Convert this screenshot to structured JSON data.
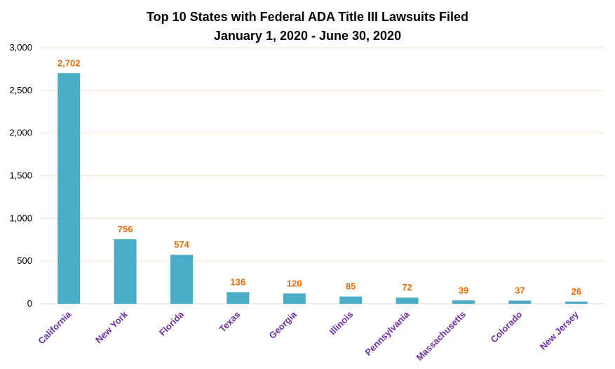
{
  "chart_data": {
    "type": "bar",
    "title": [
      "Top 10 States with Federal ADA Title III Lawsuits Filed",
      "January 1, 2020 - June 30, 2020"
    ],
    "categories": [
      "California",
      "New York",
      "Florida",
      "Texas",
      "Georgia",
      "Illinois",
      "Pennsylvania",
      "Massachusetts",
      "Colorado",
      "New Jersey"
    ],
    "values": [
      2702,
      756,
      574,
      136,
      120,
      85,
      72,
      39,
      37,
      26
    ],
    "data_labels": [
      "2,702",
      "756",
      "574",
      "136",
      "120",
      "85",
      "72",
      "39",
      "37",
      "26"
    ],
    "y_ticks": [
      {
        "value": 0,
        "label": "0"
      },
      {
        "value": 500,
        "label": "500"
      },
      {
        "value": 1000,
        "label": "1,000"
      },
      {
        "value": 1500,
        "label": "1,500"
      },
      {
        "value": 2000,
        "label": "2,000"
      },
      {
        "value": 2500,
        "label": "2,500"
      },
      {
        "value": 3000,
        "label": "3,000"
      }
    ],
    "ylim": [
      0,
      3000
    ],
    "grid": true,
    "legend": "none",
    "colors": {
      "bar": "#4BACC6",
      "data_label": "#E46C0A",
      "category_label": "#7030A0",
      "gridline": "#F2E6C9"
    }
  }
}
